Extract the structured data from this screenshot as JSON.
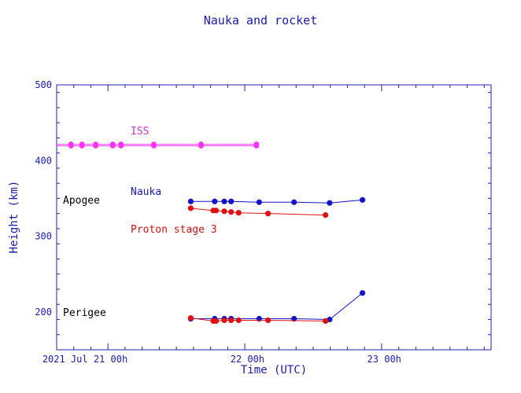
{
  "chart_data": {
    "type": "line",
    "title": "Nauka and rocket",
    "xlabel": "Time (UTC)",
    "ylabel": "Height (km)",
    "x_unit": "hours",
    "x_range": [
      -0.375,
      2.8
    ],
    "ylim": [
      150,
      500
    ],
    "y_ticks": [
      200,
      300,
      400,
      500
    ],
    "x_tick_labels": [
      {
        "x": 0,
        "label": "2021 Jul 21   00h"
      },
      {
        "x": 1,
        "label": "22  00h"
      },
      {
        "x": 2,
        "label": "23  00h"
      }
    ],
    "annotations": [
      {
        "text": "Apogee",
        "color": "#000000"
      },
      {
        "text": "Perigee",
        "color": "#000000"
      },
      {
        "text": "ISS",
        "color": "#cc33cc"
      },
      {
        "text": "Nauka",
        "color": "#1a1aa6"
      },
      {
        "text": "Proton stage 3",
        "color": "#cc1111"
      }
    ],
    "colors": {
      "axis": "#2222aa",
      "text": "#1a1aa6",
      "iss": "#ff33ff",
      "nauka": "#1414c8",
      "proton": "#dd1111"
    },
    "series": [
      {
        "name": "ISS",
        "color": "#ff33ff",
        "points": [
          [
            -0.375,
            421.5
          ],
          [
            -0.375,
            419.5
          ],
          [
            -0.27,
            421.5
          ],
          [
            -0.27,
            419.5
          ],
          [
            -0.19,
            421.5
          ],
          [
            -0.19,
            419.5
          ],
          [
            -0.09,
            421.5
          ],
          [
            -0.09,
            419.5
          ],
          [
            0.035,
            421.5
          ],
          [
            0.035,
            419.5
          ],
          [
            0.095,
            421.5
          ],
          [
            0.095,
            419.5
          ],
          [
            0.335,
            421.5
          ],
          [
            0.335,
            419.5
          ],
          [
            0.68,
            421.5
          ],
          [
            0.68,
            419.5
          ],
          [
            1.085,
            421.5
          ],
          [
            1.085,
            419.5
          ]
        ]
      },
      {
        "name": "Nauka apogee",
        "color": "#1414c8",
        "points": [
          [
            0.605,
            346
          ],
          [
            0.78,
            346
          ],
          [
            0.85,
            346
          ],
          [
            0.9,
            346
          ],
          [
            1.105,
            345
          ],
          [
            1.36,
            345
          ],
          [
            1.62,
            344
          ],
          [
            1.86,
            348
          ]
        ]
      },
      {
        "name": "Proton stage 3 apogee",
        "color": "#dd1111",
        "points": [
          [
            0.605,
            337
          ],
          [
            0.77,
            334
          ],
          [
            0.79,
            334
          ],
          [
            0.85,
            333
          ],
          [
            0.9,
            332
          ],
          [
            0.955,
            331
          ],
          [
            1.17,
            330
          ],
          [
            1.59,
            328
          ]
        ]
      },
      {
        "name": "Nauka perigee",
        "color": "#1414c8",
        "points": [
          [
            0.605,
            191
          ],
          [
            0.78,
            191
          ],
          [
            0.85,
            191
          ],
          [
            0.9,
            191
          ],
          [
            1.105,
            191
          ],
          [
            1.36,
            191
          ],
          [
            1.62,
            190
          ],
          [
            1.86,
            225
          ]
        ]
      },
      {
        "name": "Proton stage 3 perigee",
        "color": "#dd1111",
        "points": [
          [
            0.605,
            192
          ],
          [
            0.77,
            188
          ],
          [
            0.79,
            188
          ],
          [
            0.85,
            189
          ],
          [
            0.9,
            189
          ],
          [
            0.955,
            189
          ],
          [
            1.17,
            189
          ],
          [
            1.59,
            188
          ]
        ]
      }
    ]
  }
}
